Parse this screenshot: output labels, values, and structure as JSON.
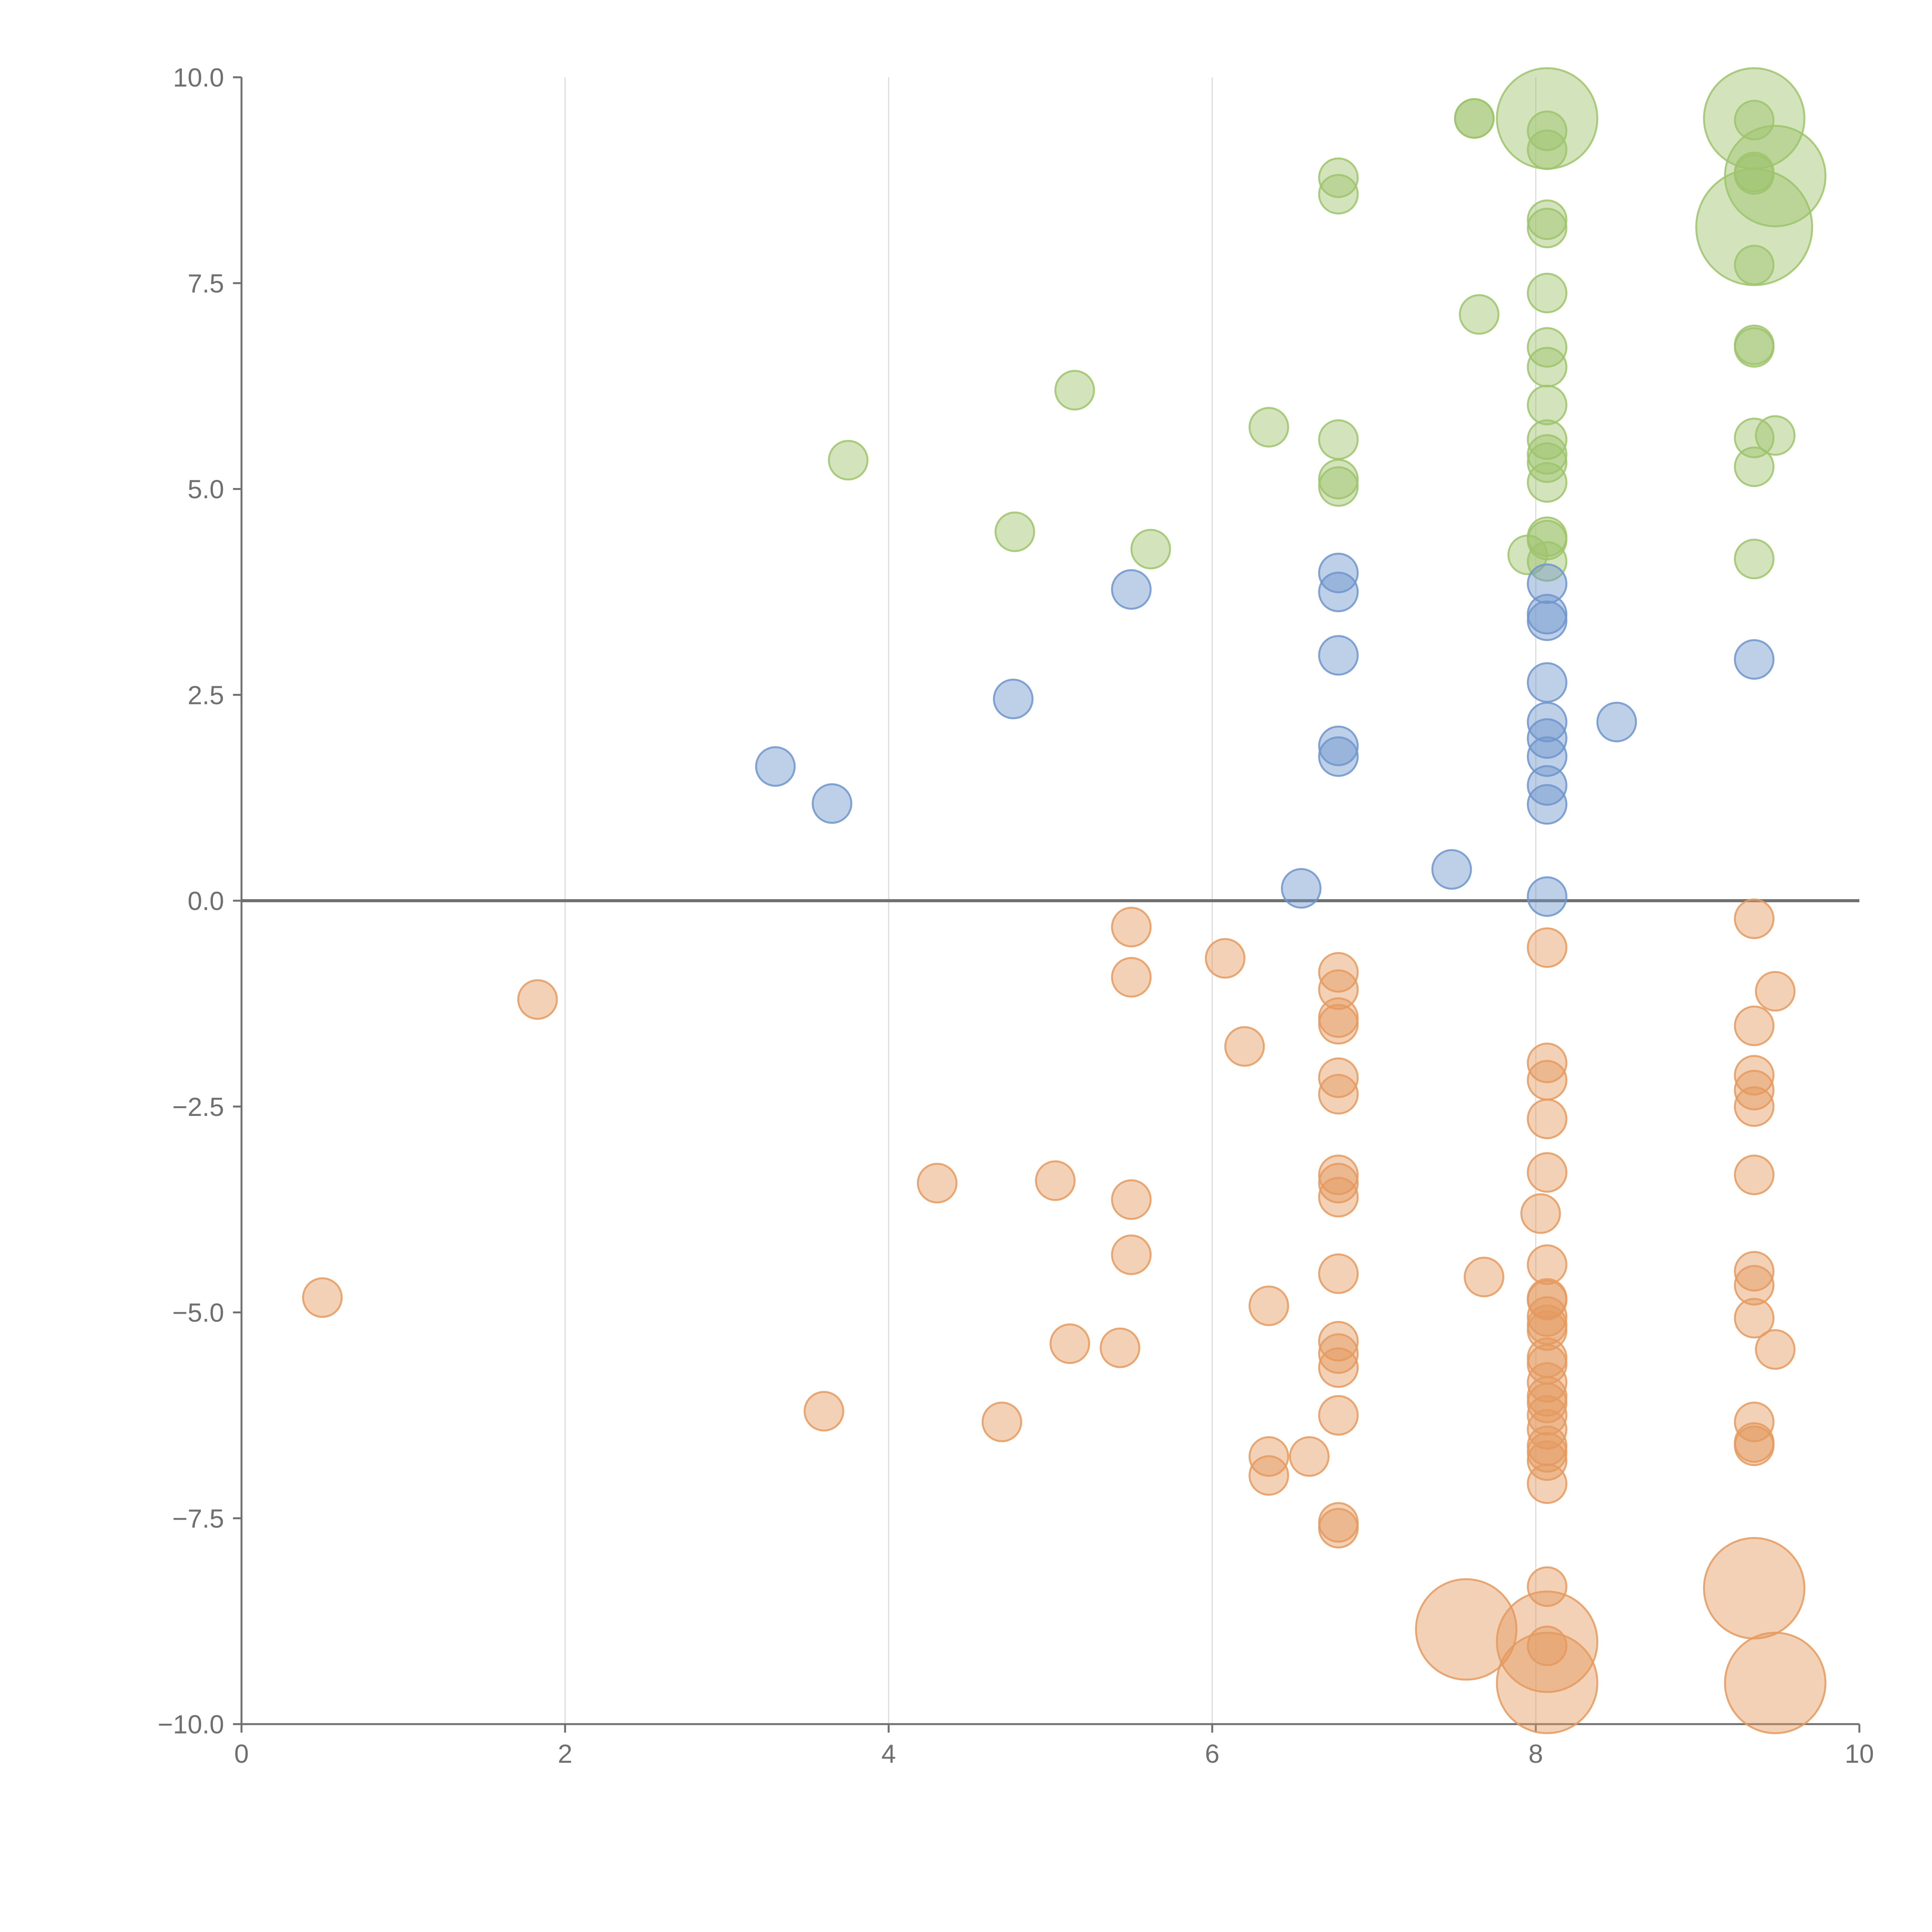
{
  "chart_data": {
    "type": "scatter",
    "title": "",
    "xlabel": "",
    "ylabel": "",
    "xlim": [
      0,
      10
    ],
    "ylim": [
      -10,
      10
    ],
    "x_ticks": [
      "0",
      "2",
      "4",
      "6",
      "8",
      "10"
    ],
    "y_ticks": [
      "10.0",
      "7.5",
      "5.0",
      "2.5",
      "0.0",
      "−2.5",
      "−5.0",
      "−7.5",
      "−10.0"
    ],
    "grid": "vertical",
    "zero_line": true,
    "legend": "none",
    "colors": {
      "green": "#9dc46c",
      "blue": "#6f95cc",
      "orange": "#e59a5f"
    },
    "series": [
      {
        "color_key": "green",
        "points": [
          [
            3.75,
            5.35,
            1
          ],
          [
            4.78,
            4.48,
            1
          ],
          [
            5.15,
            6.2,
            1
          ],
          [
            5.62,
            4.27,
            1
          ],
          [
            6.35,
            5.75,
            1
          ],
          [
            6.78,
            8.78,
            1
          ],
          [
            6.78,
            8.58,
            1
          ],
          [
            6.78,
            5.6,
            1
          ],
          [
            6.78,
            5.12,
            1
          ],
          [
            6.78,
            5.03,
            1
          ],
          [
            7.62,
            9.5,
            1
          ],
          [
            7.62,
            9.5,
            1
          ],
          [
            7.65,
            7.12,
            1
          ],
          [
            7.95,
            4.2,
            1
          ],
          [
            8.07,
            9.5,
            2.6
          ],
          [
            8.07,
            9.35,
            1
          ],
          [
            8.07,
            9.12,
            1
          ],
          [
            8.07,
            8.27,
            1
          ],
          [
            8.07,
            8.17,
            1
          ],
          [
            8.07,
            7.38,
            1
          ],
          [
            8.07,
            6.72,
            1
          ],
          [
            8.07,
            6.48,
            1
          ],
          [
            8.07,
            6.02,
            1
          ],
          [
            8.07,
            5.6,
            1
          ],
          [
            8.07,
            5.42,
            1
          ],
          [
            8.07,
            5.32,
            1
          ],
          [
            8.07,
            5.08,
            1
          ],
          [
            8.07,
            4.42,
            1
          ],
          [
            8.07,
            4.38,
            1
          ],
          [
            8.07,
            4.12,
            1
          ],
          [
            9.35,
            9.5,
            2.6
          ],
          [
            9.35,
            9.48,
            1
          ],
          [
            9.35,
            8.85,
            1
          ],
          [
            9.35,
            8.82,
            1
          ],
          [
            9.35,
            8.18,
            3
          ],
          [
            9.35,
            7.72,
            1
          ],
          [
            9.35,
            6.75,
            1
          ],
          [
            9.35,
            6.72,
            1
          ],
          [
            9.35,
            5.62,
            1
          ],
          [
            9.35,
            5.27,
            1
          ],
          [
            9.35,
            4.15,
            1
          ],
          [
            9.48,
            8.8,
            2.6
          ],
          [
            9.48,
            5.65,
            1
          ]
        ]
      },
      {
        "color_key": "blue",
        "points": [
          [
            3.3,
            1.63,
            1
          ],
          [
            3.65,
            1.18,
            1
          ],
          [
            4.77,
            2.45,
            1
          ],
          [
            5.5,
            3.78,
            1
          ],
          [
            6.55,
            0.15,
            1
          ],
          [
            6.78,
            3.98,
            1
          ],
          [
            6.78,
            3.75,
            1
          ],
          [
            6.78,
            2.98,
            1
          ],
          [
            6.78,
            1.88,
            1
          ],
          [
            6.78,
            1.75,
            1
          ],
          [
            7.48,
            0.38,
            1
          ],
          [
            8.07,
            3.85,
            1
          ],
          [
            8.07,
            3.48,
            1
          ],
          [
            8.07,
            3.4,
            1
          ],
          [
            8.07,
            2.65,
            1
          ],
          [
            8.07,
            2.17,
            1
          ],
          [
            8.07,
            1.97,
            1
          ],
          [
            8.07,
            1.75,
            1
          ],
          [
            8.07,
            1.4,
            1
          ],
          [
            8.07,
            1.17,
            1
          ],
          [
            8.07,
            0.05,
            1
          ],
          [
            8.5,
            2.17,
            1
          ],
          [
            9.35,
            2.93,
            1
          ]
        ]
      },
      {
        "color_key": "orange",
        "points": [
          [
            0.5,
            -4.82,
            1
          ],
          [
            1.83,
            -1.2,
            1
          ],
          [
            3.6,
            -6.2,
            1
          ],
          [
            4.3,
            -3.43,
            1
          ],
          [
            4.7,
            -6.33,
            1
          ],
          [
            5.03,
            -3.4,
            1
          ],
          [
            5.12,
            -5.38,
            1
          ],
          [
            5.43,
            -5.43,
            1
          ],
          [
            5.5,
            -0.32,
            1
          ],
          [
            5.5,
            -0.93,
            1
          ],
          [
            5.5,
            -3.63,
            1
          ],
          [
            5.5,
            -4.3,
            1
          ],
          [
            6.08,
            -0.7,
            1
          ],
          [
            6.2,
            -1.77,
            1
          ],
          [
            6.35,
            -4.92,
            1
          ],
          [
            6.35,
            -6.75,
            1
          ],
          [
            6.35,
            -6.98,
            1
          ],
          [
            6.6,
            -6.75,
            1
          ],
          [
            6.78,
            -0.87,
            1
          ],
          [
            6.78,
            -1.08,
            1
          ],
          [
            6.78,
            -1.42,
            1
          ],
          [
            6.78,
            -1.5,
            1
          ],
          [
            6.78,
            -2.15,
            1
          ],
          [
            6.78,
            -2.35,
            1
          ],
          [
            6.78,
            -3.33,
            1
          ],
          [
            6.78,
            -3.43,
            1
          ],
          [
            6.78,
            -3.6,
            1
          ],
          [
            6.78,
            -4.53,
            1
          ],
          [
            6.78,
            -5.35,
            1
          ],
          [
            6.78,
            -5.5,
            1
          ],
          [
            6.78,
            -5.67,
            1
          ],
          [
            6.78,
            -6.25,
            1
          ],
          [
            6.78,
            -7.55,
            1
          ],
          [
            6.78,
            -7.62,
            1
          ],
          [
            7.57,
            -8.85,
            2.6
          ],
          [
            7.68,
            -4.57,
            1
          ],
          [
            8.07,
            -0.57,
            1
          ],
          [
            8.07,
            -1.97,
            1
          ],
          [
            8.07,
            -2.18,
            1
          ],
          [
            8.07,
            -2.65,
            1
          ],
          [
            8.07,
            -3.3,
            1
          ],
          [
            8.03,
            -3.8,
            1
          ],
          [
            8.07,
            -4.42,
            1
          ],
          [
            8.07,
            -4.83,
            1
          ],
          [
            8.07,
            -4.85,
            1
          ],
          [
            8.07,
            -5.05,
            1
          ],
          [
            8.07,
            -5.15,
            1
          ],
          [
            8.07,
            -5.22,
            1
          ],
          [
            8.07,
            -5.55,
            1
          ],
          [
            8.07,
            -5.63,
            1
          ],
          [
            8.07,
            -5.85,
            1
          ],
          [
            8.07,
            -6.02,
            1
          ],
          [
            8.07,
            -6.1,
            1
          ],
          [
            8.07,
            -6.25,
            1
          ],
          [
            8.07,
            -6.42,
            1
          ],
          [
            8.07,
            -6.62,
            1
          ],
          [
            8.07,
            -6.7,
            1
          ],
          [
            8.07,
            -6.8,
            1
          ],
          [
            8.07,
            -7.08,
            1
          ],
          [
            8.07,
            -8.33,
            1
          ],
          [
            8.07,
            -9.05,
            1
          ],
          [
            8.07,
            -9.0,
            2.6
          ],
          [
            8.07,
            -9.5,
            2.6
          ],
          [
            9.35,
            -0.22,
            1
          ],
          [
            9.35,
            -1.52,
            1
          ],
          [
            9.35,
            -2.12,
            1
          ],
          [
            9.35,
            -2.3,
            1
          ],
          [
            9.35,
            -2.5,
            1
          ],
          [
            9.35,
            -3.33,
            1
          ],
          [
            9.35,
            -4.5,
            1
          ],
          [
            9.35,
            -4.67,
            1
          ],
          [
            9.35,
            -5.07,
            1
          ],
          [
            9.35,
            -6.33,
            1
          ],
          [
            9.35,
            -6.58,
            1
          ],
          [
            9.35,
            -6.62,
            1
          ],
          [
            9.35,
            -8.35,
            2.6
          ],
          [
            9.48,
            -1.1,
            1
          ],
          [
            9.48,
            -5.45,
            1
          ],
          [
            9.48,
            -9.5,
            2.6
          ]
        ]
      }
    ]
  }
}
